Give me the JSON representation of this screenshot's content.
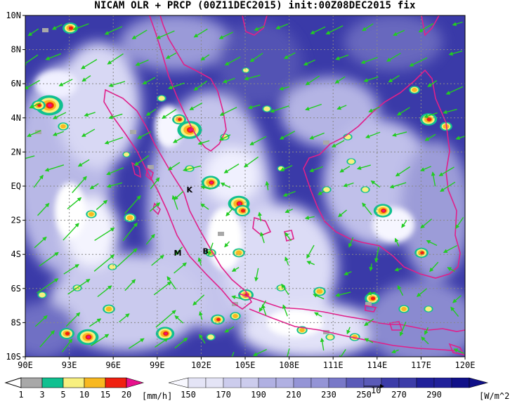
{
  "title": "NICAM OLR + PRCP (00Z11DEC2015) init:00Z08DEC2015 fix",
  "map": {
    "lon_ticks": [
      "90E",
      "93E",
      "96E",
      "99E",
      "102E",
      "105E",
      "108E",
      "111E",
      "114E",
      "117E",
      "120E"
    ],
    "lat_ticks": [
      "10N",
      "8N",
      "6N",
      "4N",
      "2N",
      "EQ",
      "2S",
      "4S",
      "6S",
      "8S",
      "10S"
    ],
    "stations": [
      {
        "label": "K",
        "lon": 101.2,
        "lat": -0.2
      },
      {
        "label": "M",
        "lon": 100.4,
        "lat": -3.9
      },
      {
        "label": "B",
        "lon": 102.3,
        "lat": -3.8
      }
    ],
    "colors": {
      "coast": "#e0208a",
      "wind": "#22cc22",
      "grid": "#888888"
    }
  },
  "prcp_legend": {
    "labels": [
      "1",
      "3",
      "5",
      "10",
      "15",
      "20"
    ],
    "unit": "[mm/h]",
    "colors": [
      "#a8a8a8",
      "#10c090",
      "#f8f080",
      "#f8b820",
      "#f02010",
      "#e8108c"
    ]
  },
  "olr_legend": {
    "labels": [
      "150",
      "170",
      "190",
      "210",
      "230",
      "250",
      "270",
      "290"
    ],
    "unit": "[W/m^2]",
    "vector_ref": "10",
    "colors": [
      "#f8f8ff",
      "#e4e4f6",
      "#cccced",
      "#b0b0e2",
      "#9494d6",
      "#7878c8",
      "#5a5ab8",
      "#3c3ca8",
      "#20209a",
      "#101088"
    ]
  }
}
